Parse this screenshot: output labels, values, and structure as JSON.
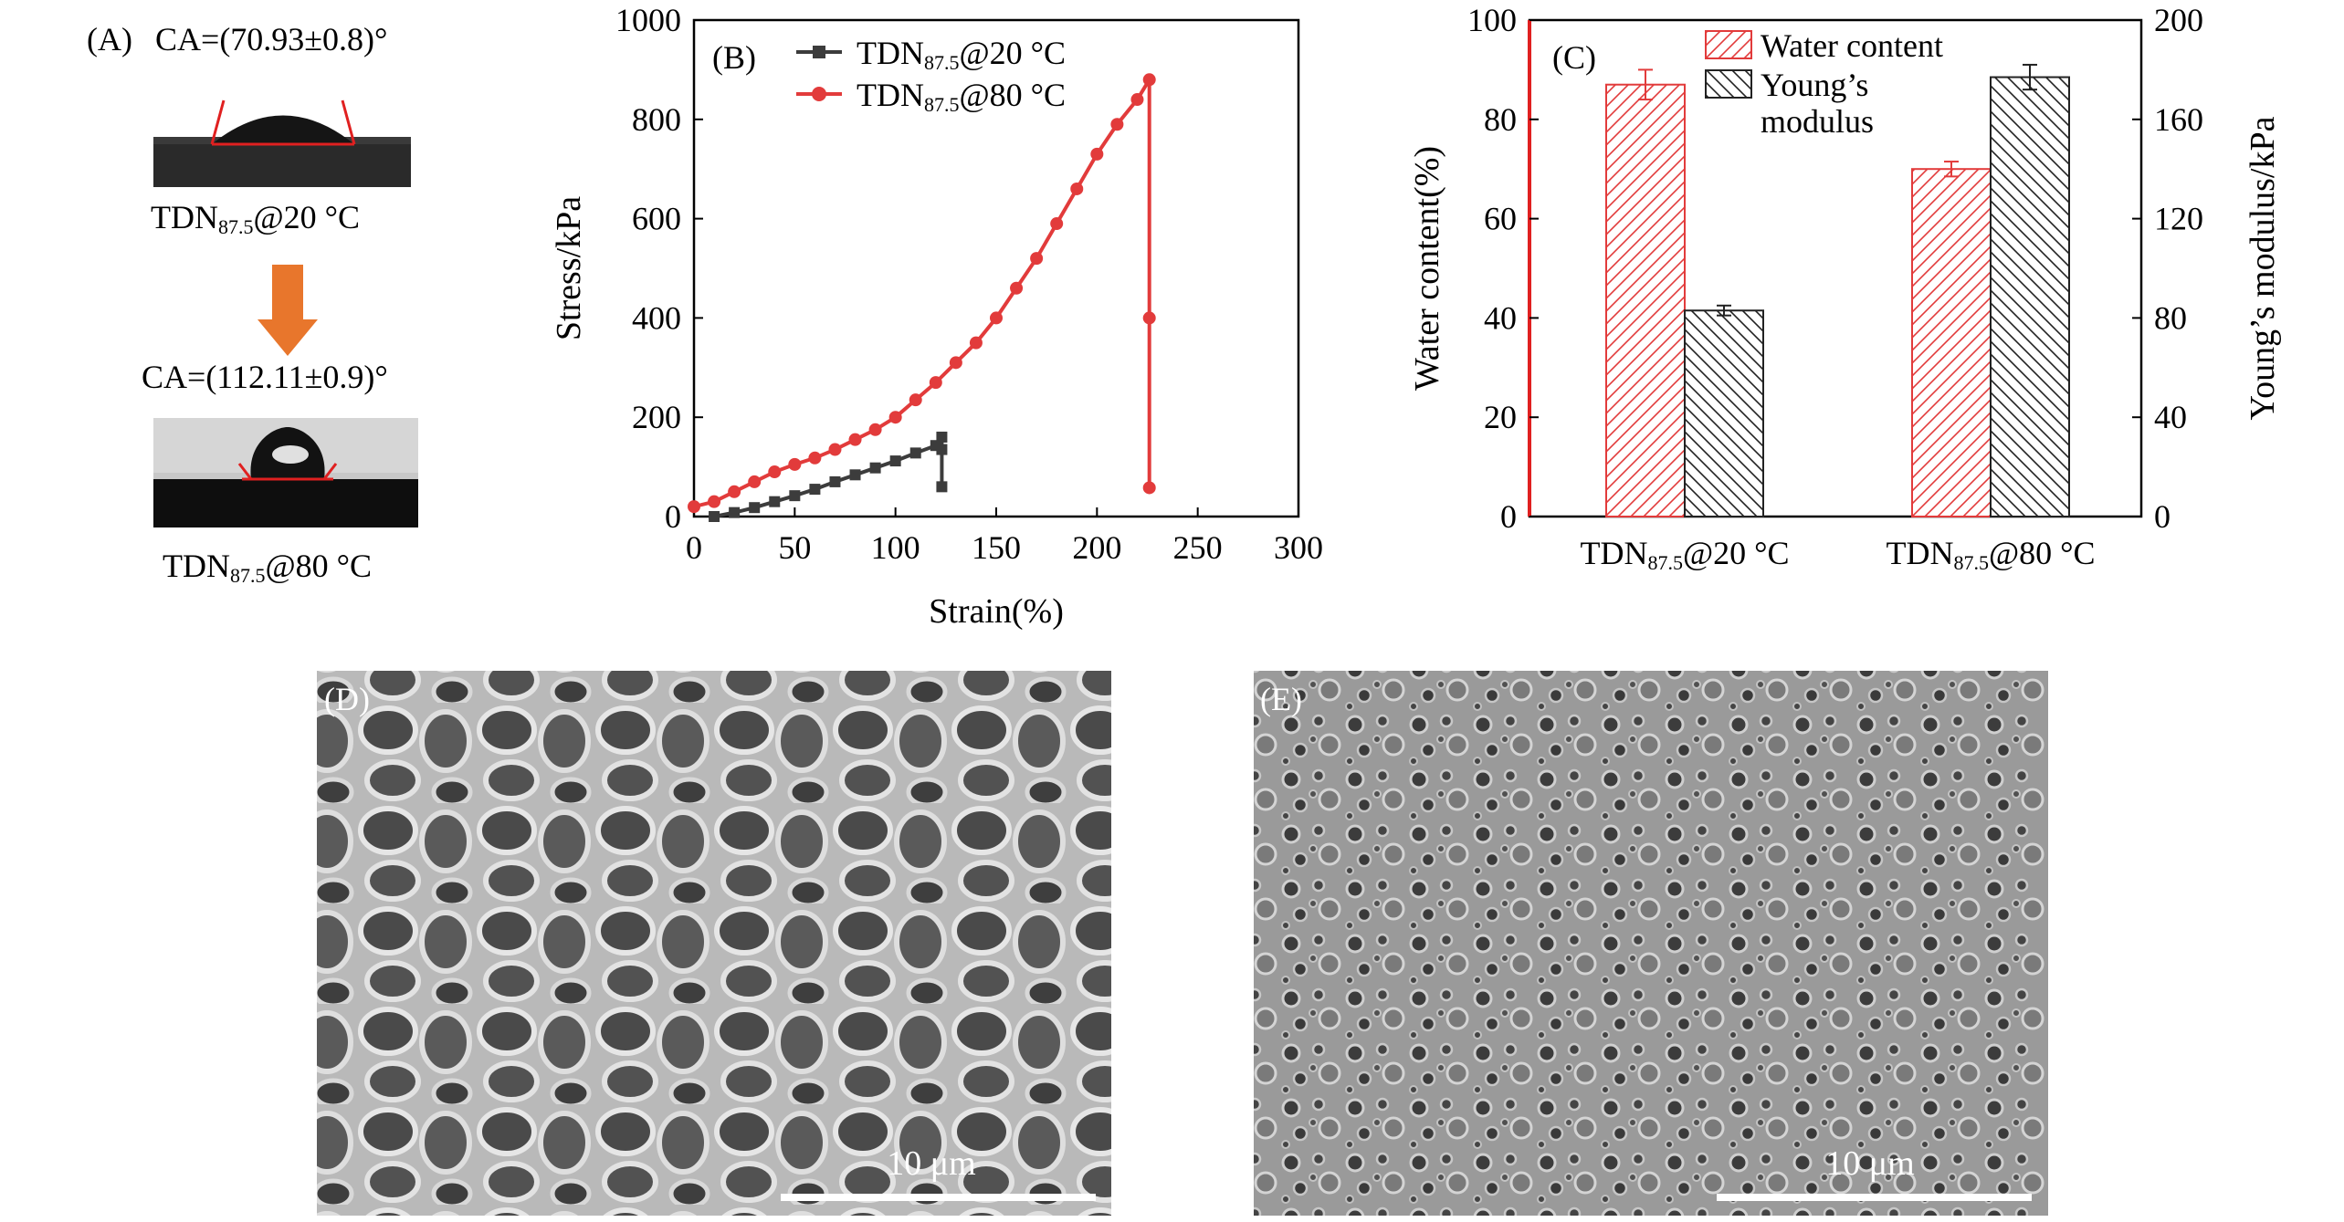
{
  "panel_a": {
    "label": "(A)",
    "top": {
      "ca_text": "CA=(70.93±0.8)°",
      "sample_base": "TDN",
      "sample_sub": "87.5",
      "sample_rest": "@20 °C"
    },
    "bottom": {
      "ca_text": "CA=(112.11±0.9)°",
      "sample_base": "TDN",
      "sample_sub": "87.5",
      "sample_rest": "@80 °C"
    },
    "arrow_color": "#e8762c"
  },
  "panel_d": {
    "label": "(D)",
    "scale_bar": "10 μm"
  },
  "panel_e": {
    "label": "(E)",
    "scale_bar": "10 μm"
  },
  "chart_data": [
    {
      "panel": "(B)",
      "type": "line",
      "xlabel": "Strain(%)",
      "ylabel": "Stress/kPa",
      "xlim": [
        0,
        300
      ],
      "ylim": [
        0,
        1000
      ],
      "xticks": [
        0,
        50,
        100,
        150,
        200,
        250,
        300
      ],
      "yticks": [
        0,
        200,
        400,
        600,
        800,
        1000
      ],
      "series": [
        {
          "name_base": "TDN",
          "name_sub": "87.5",
          "name_rest": "@20 °C",
          "color": "#3c3c3c",
          "marker": "square",
          "x": [
            10,
            20,
            30,
            40,
            50,
            60,
            70,
            80,
            90,
            100,
            110,
            120,
            123,
            123,
            123
          ],
          "y": [
            0,
            8,
            18,
            30,
            42,
            55,
            70,
            84,
            98,
            112,
            128,
            143,
            160,
            135,
            60
          ]
        },
        {
          "name_base": "TDN",
          "name_sub": "87.5",
          "name_rest": "@80 °C",
          "color": "#e23b3b",
          "marker": "circle",
          "x": [
            0,
            10,
            20,
            30,
            40,
            50,
            60,
            70,
            80,
            90,
            100,
            110,
            120,
            130,
            140,
            150,
            160,
            170,
            180,
            190,
            200,
            210,
            220,
            226,
            226,
            226
          ],
          "y": [
            20,
            30,
            50,
            70,
            90,
            105,
            118,
            135,
            155,
            175,
            200,
            235,
            270,
            310,
            350,
            400,
            460,
            520,
            590,
            660,
            730,
            790,
            840,
            880,
            400,
            58
          ]
        }
      ]
    },
    {
      "panel": "(C)",
      "type": "bar",
      "categories": [
        {
          "base": "TDN",
          "sub": "87.5",
          "rest": "@20 °C"
        },
        {
          "base": "TDN",
          "sub": "87.5",
          "rest": "@80 °C"
        }
      ],
      "ylabel_left": "Water content(%)",
      "ylabel_right": "Young’s modulus/kPa",
      "ylim_left": [
        0,
        100
      ],
      "ylim_right": [
        0,
        200
      ],
      "yticks_left": [
        0,
        20,
        40,
        60,
        80,
        100
      ],
      "yticks_right": [
        0,
        40,
        80,
        120,
        160,
        200
      ],
      "series": [
        {
          "name": "Water content",
          "axis": "left",
          "color": "#e23b3b",
          "hatch": "forward",
          "values": [
            87,
            70
          ],
          "errors": [
            3,
            1.5
          ]
        },
        {
          "name_line1": "Young’s",
          "name_line2": "modulus",
          "axis": "right",
          "color": "#222222",
          "hatch": "back",
          "values": [
            83,
            177
          ],
          "errors": [
            2,
            5
          ]
        }
      ]
    }
  ]
}
